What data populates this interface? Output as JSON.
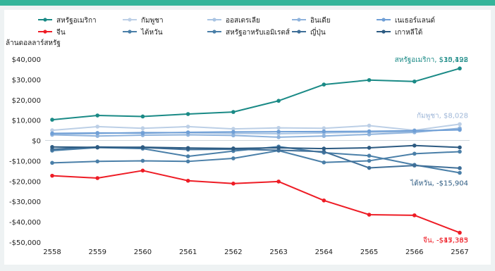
{
  "chart_data": {
    "type": "line",
    "title": "",
    "ylabel": "ล้านดอลลาร์สหรัฐ",
    "xlabel": "",
    "x": [
      "2558",
      "2559",
      "2560",
      "2561",
      "2562",
      "2563",
      "2564",
      "2565",
      "2566",
      "2567"
    ],
    "ylim": [
      -50000,
      40000
    ],
    "yticks": [
      40000,
      30000,
      20000,
      10000,
      0,
      -10000,
      -20000,
      -30000,
      -40000,
      -50000
    ],
    "ytick_labels": [
      "$40,000",
      "$30,000",
      "$20,000",
      "$10,000",
      "$0",
      "-$10,000",
      "-$20,000",
      "-$30,000",
      "-$40,000",
      "-$50,000"
    ],
    "grid": false,
    "legend_position": "top",
    "series": [
      {
        "name": "สหรัฐอเมริกา",
        "color": "#1a8a86",
        "values": [
          10192,
          12300,
          11800,
          13000,
          14000,
          19500,
          27500,
          29700,
          29000,
          35428
        ]
      },
      {
        "name": "จีน",
        "color": "#ee1c25",
        "values": [
          -17333,
          -18500,
          -14800,
          -19800,
          -21200,
          -20200,
          -29500,
          -36500,
          -36800,
          -45365
        ]
      },
      {
        "name": "กัมพูชา",
        "color": "#bccfe6",
        "values": [
          5000,
          6800,
          6000,
          6800,
          5700,
          6200,
          6000,
          7300,
          5000,
          8028
        ]
      },
      {
        "name": "ไต้หวัน",
        "color": "#4a7fa8",
        "values": [
          -5000,
          -3500,
          -4000,
          -7800,
          -5200,
          -3000,
          -6000,
          -7500,
          -12000,
          -15904
        ]
      },
      {
        "name": "ออสเตรเลีย",
        "color": "#a9c4e3",
        "values": [
          3200,
          3400,
          4000,
          3800,
          3500,
          3300,
          3700,
          4100,
          4400,
          5600
        ]
      },
      {
        "name": "สหรัฐอาหรับเอมิเรตส์",
        "color": "#4a7fa8",
        "values": [
          -11000,
          -10300,
          -10000,
          -10300,
          -8800,
          -5000,
          -10800,
          -10000,
          -6500,
          -5500
        ]
      },
      {
        "name": "อินเดีย",
        "color": "#8fb3dc",
        "values": [
          2800,
          2200,
          2600,
          2800,
          2500,
          1600,
          2200,
          3000,
          4000,
          6000
        ]
      },
      {
        "name": "ญี่ปุ่น",
        "color": "#3f6f98",
        "values": [
          -4300,
          -3200,
          -3500,
          -4500,
          -4300,
          -4800,
          -5500,
          -13500,
          -12300,
          -13600
        ]
      },
      {
        "name": "เนเธอร์แลนด์",
        "color": "#6f9fd6",
        "values": [
          3500,
          3700,
          3600,
          4000,
          4200,
          4300,
          4400,
          4500,
          4800,
          5200
        ]
      },
      {
        "name": "เกาหลีใต้",
        "color": "#2d5b82",
        "values": [
          -3200,
          -3400,
          -3300,
          -3700,
          -3900,
          -3600,
          -4000,
          -3600,
          -2500,
          -3400
        ]
      }
    ],
    "annotations": [
      {
        "text": "สหรัฐอเมริกา, $35,428",
        "series": "สหรัฐอเมริกา",
        "color": "#1a8a86"
      },
      {
        "text": "$10,192",
        "series": "สหรัฐอเมริกา",
        "color": "#1a8a86"
      },
      {
        "text": "กัมพูชา, $8,028",
        "series": "กัมพูชา",
        "color": "#9fb7d8"
      },
      {
        "text": "ไต้หวัน, -$15,904",
        "series": "ไต้หวัน",
        "color": "#2d5b82"
      },
      {
        "text": "-$17,333",
        "series": "จีน",
        "color": "#ee1c25"
      },
      {
        "text": "จีน, -$45,365",
        "series": "จีน",
        "color": "#ee1c25"
      }
    ]
  }
}
